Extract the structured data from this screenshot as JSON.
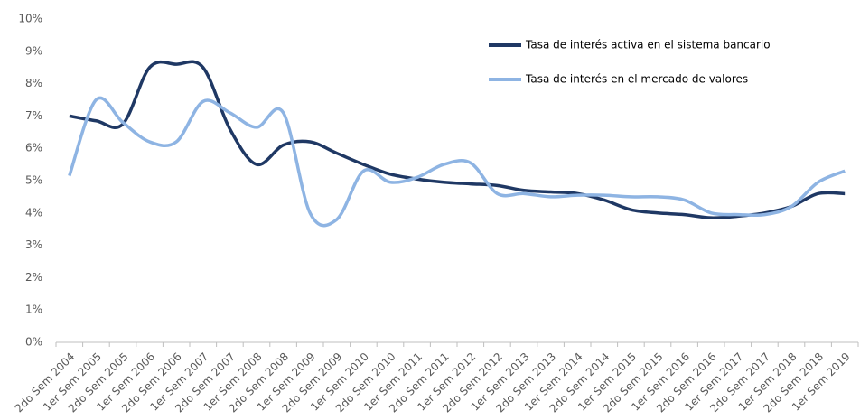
{
  "chart_data": {
    "type": "line",
    "categories": [
      "2do Sem 2004",
      "1er Sem 2005",
      "2do Sem 2005",
      "1er Sem 2006",
      "2do Sem 2006",
      "1er Sem 2007",
      "2do Sem 2007",
      "1er Sem 2008",
      "2do Sem 2008",
      "1er Sem 2009",
      "2do Sem 2009",
      "1er Sem 2010",
      "2do Sem 2010",
      "1er Sem 2011",
      "2do Sem 2011",
      "1er Sem 2012",
      "2do Sem 2012",
      "1er Sem 2013",
      "2do Sem 2013",
      "1er Sem 2014",
      "2do Sem 2014",
      "1er Sem 2015",
      "2do Sem 2015",
      "1er Sem 2016",
      "2do Sem 2016",
      "1er Sem 2017",
      "2do Sem 2017",
      "1er Sem 2018",
      "2do Sem 2018",
      "1er Sem 2019"
    ],
    "series": [
      {
        "name": "Tasa de interés activa en el sistema bancario",
        "color": "#1f3864",
        "values": [
          7.0,
          6.85,
          6.75,
          8.5,
          8.6,
          8.5,
          6.6,
          5.5,
          6.1,
          6.2,
          5.85,
          5.5,
          5.2,
          5.05,
          4.95,
          4.9,
          4.85,
          4.7,
          4.65,
          4.6,
          4.4,
          4.1,
          4.0,
          3.95,
          3.85,
          3.9,
          4.0,
          4.2,
          4.6,
          4.6
        ]
      },
      {
        "name": "Tasa de interés en el mercado de valores",
        "color": "#8eb4e3",
        "values": [
          5.15,
          7.5,
          6.8,
          6.2,
          6.2,
          7.45,
          7.1,
          6.65,
          7.1,
          4.0,
          3.8,
          5.3,
          4.95,
          5.1,
          5.5,
          5.55,
          4.6,
          4.6,
          4.5,
          4.55,
          4.55,
          4.5,
          4.5,
          4.4,
          4.0,
          3.95,
          3.95,
          4.2,
          4.95,
          5.3
        ]
      }
    ],
    "ylim": [
      0,
      10
    ],
    "yticks": [
      {
        "value": 0,
        "label": "0%"
      },
      {
        "value": 1,
        "label": "1%"
      },
      {
        "value": 2,
        "label": "2%"
      },
      {
        "value": 3,
        "label": "3%"
      },
      {
        "value": 4,
        "label": "4%"
      },
      {
        "value": 5,
        "label": "5%"
      },
      {
        "value": 6,
        "label": "6%"
      },
      {
        "value": 7,
        "label": "7%"
      },
      {
        "value": 8,
        "label": "8%"
      },
      {
        "value": 9,
        "label": "9%"
      },
      {
        "value": 10,
        "label": "10%"
      }
    ],
    "legend": "upper right"
  }
}
